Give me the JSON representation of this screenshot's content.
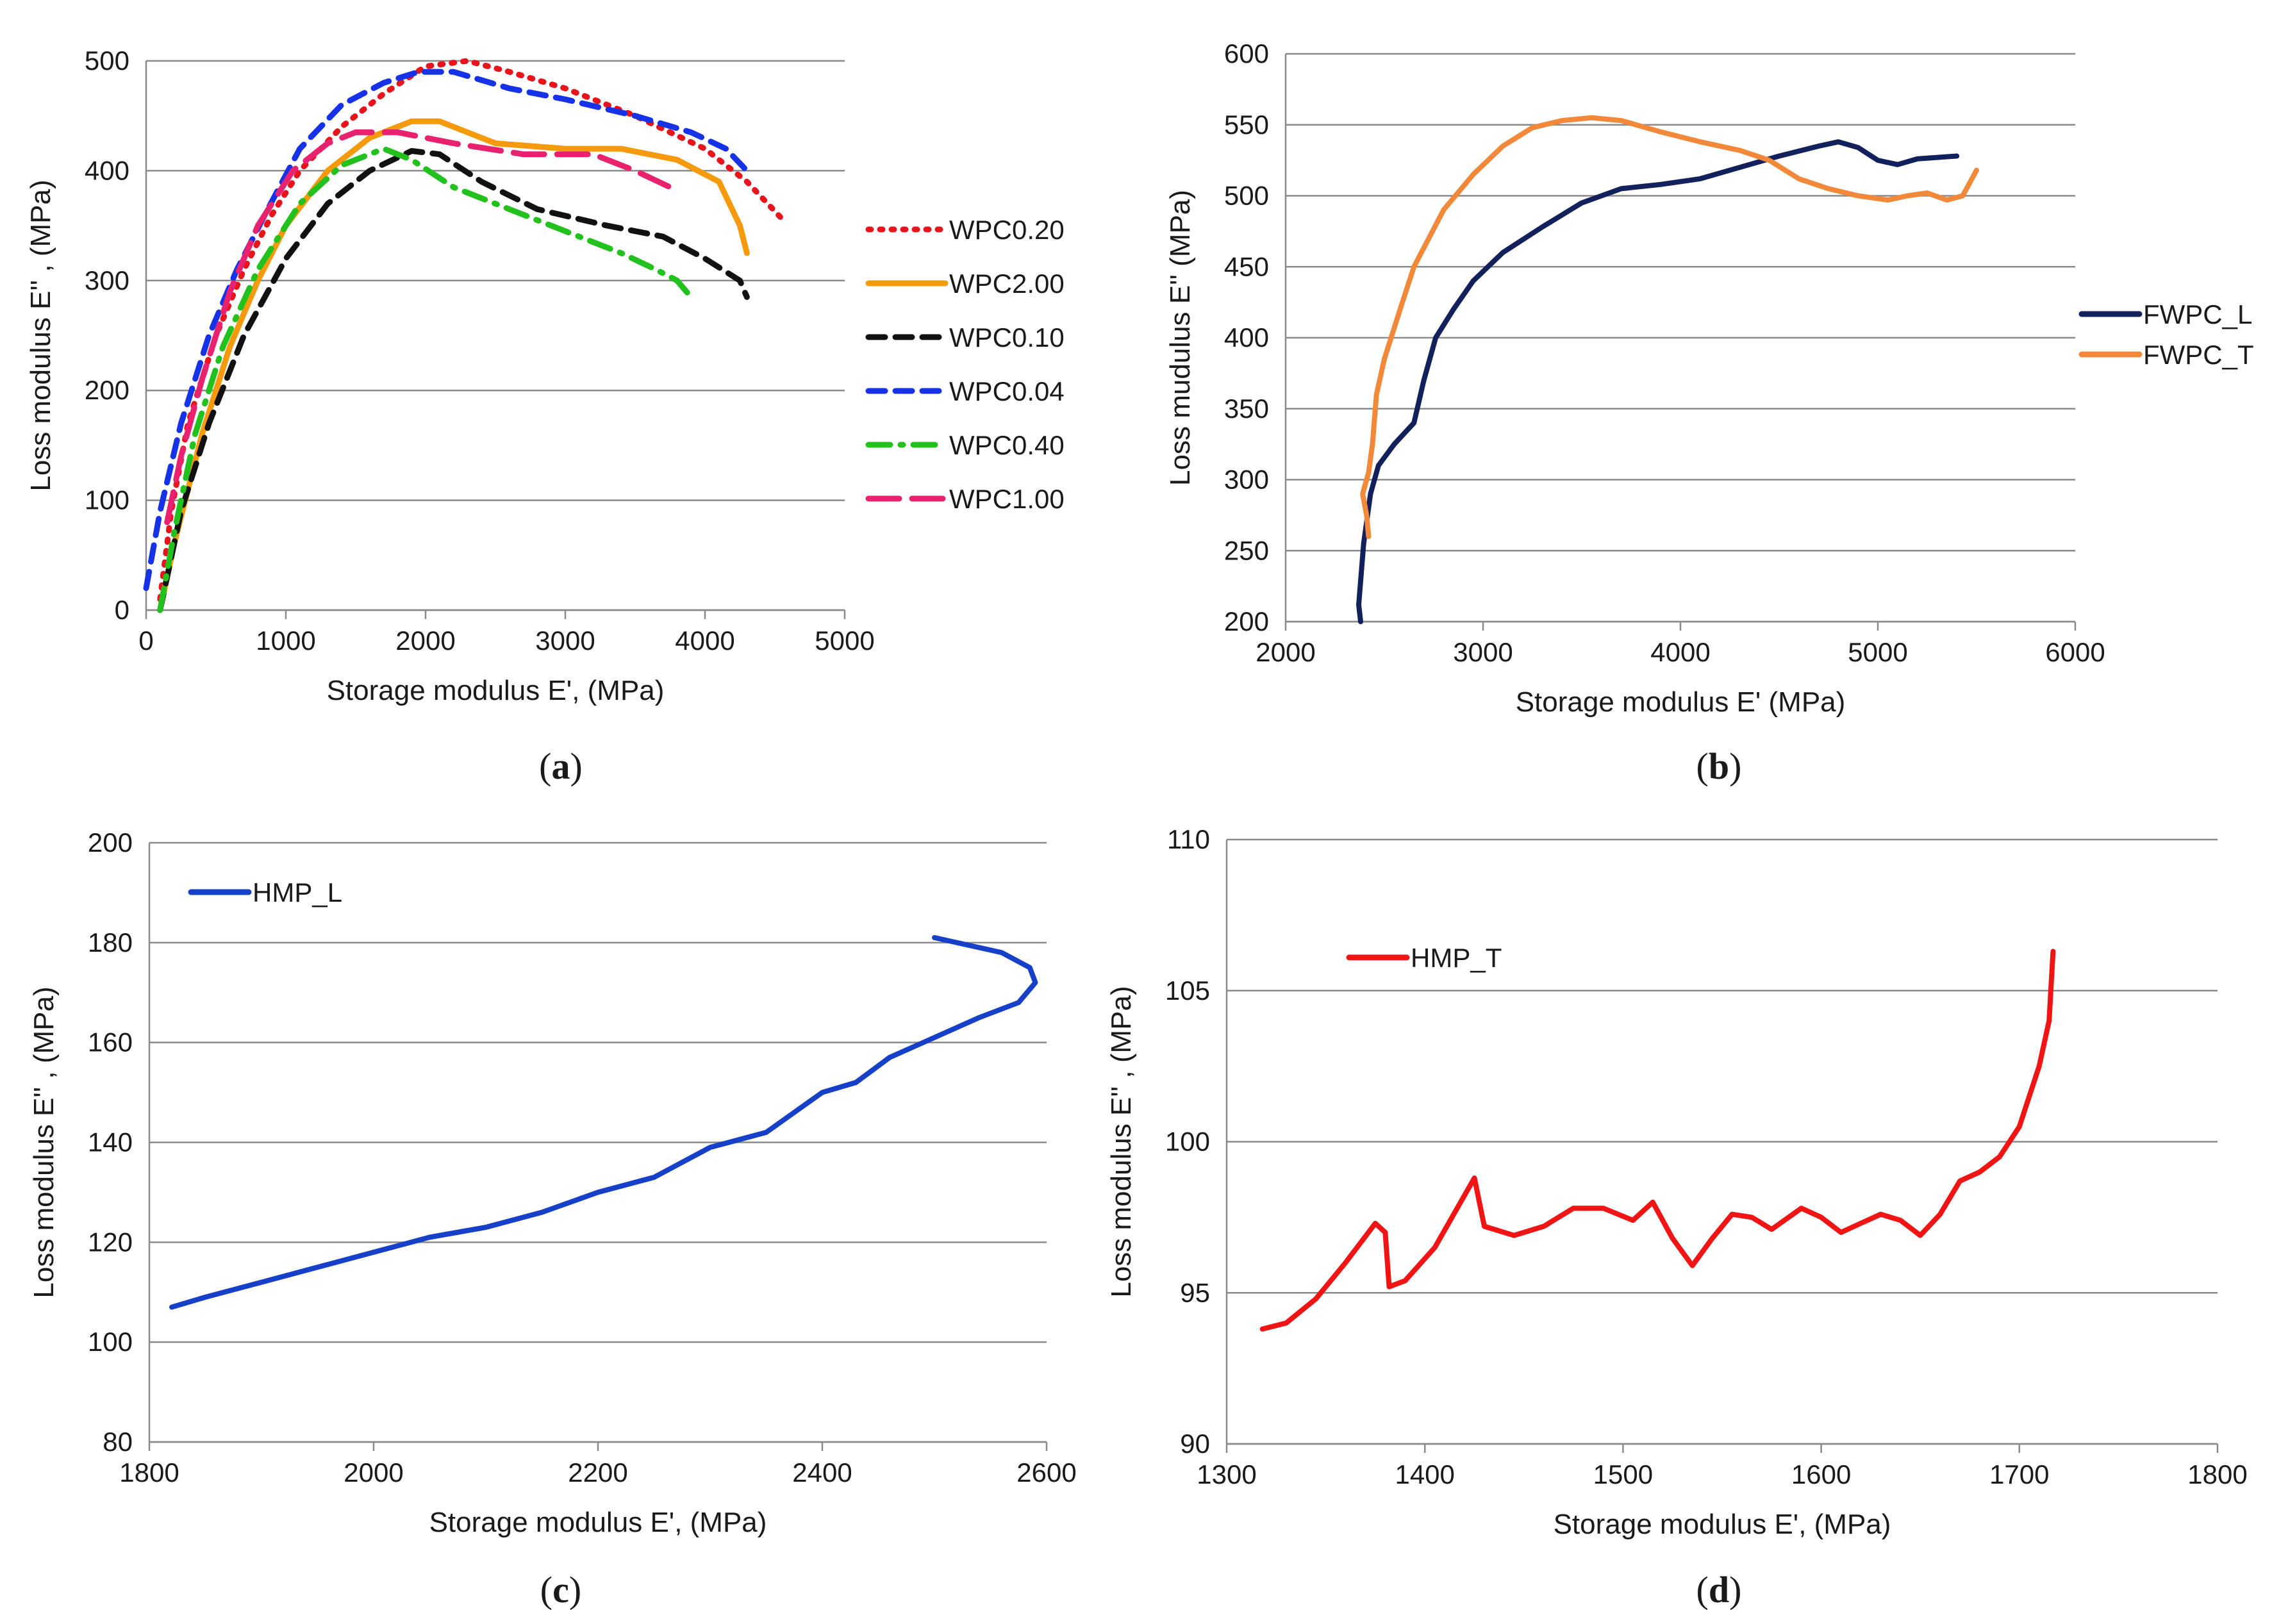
{
  "chart_data": [
    {
      "id": "a",
      "type": "line",
      "panel_label": "a",
      "title": "",
      "xlabel": "Storage modulus  E', (MPa)",
      "ylabel": "Loss modulus  E'' , (MPa)",
      "xlim": [
        0,
        5000
      ],
      "ylim": [
        0,
        500
      ],
      "xticks": [
        "0",
        "1000",
        "2000",
        "3000",
        "4000",
        "5000"
      ],
      "yticks": [
        "0",
        "100",
        "200",
        "300",
        "400",
        "500"
      ],
      "grid": true,
      "legend_position": "right",
      "series": [
        {
          "name": "WPC0.20",
          "color": "#e8141c",
          "dash": "dotted",
          "points": [
            [
              100,
              10
            ],
            [
              180,
              90
            ],
            [
              300,
              170
            ],
            [
              500,
              250
            ],
            [
              700,
              310
            ],
            [
              900,
              360
            ],
            [
              1100,
              400
            ],
            [
              1400,
              440
            ],
            [
              1700,
              470
            ],
            [
              2000,
              495
            ],
            [
              2300,
              500
            ],
            [
              2600,
              490
            ],
            [
              3000,
              475
            ],
            [
              3500,
              450
            ],
            [
              4000,
              420
            ],
            [
              4300,
              390
            ],
            [
              4560,
              355
            ]
          ]
        },
        {
          "name": "WPC2.00",
          "color": "#f59a0c",
          "dash": "solid",
          "points": [
            [
              100,
              0
            ],
            [
              200,
              60
            ],
            [
              400,
              160
            ],
            [
              600,
              240
            ],
            [
              800,
              300
            ],
            [
              1000,
              350
            ],
            [
              1300,
              400
            ],
            [
              1600,
              430
            ],
            [
              1900,
              445
            ],
            [
              2100,
              445
            ],
            [
              2500,
              425
            ],
            [
              3000,
              420
            ],
            [
              3400,
              420
            ],
            [
              3800,
              410
            ],
            [
              4100,
              390
            ],
            [
              4250,
              350
            ],
            [
              4300,
              325
            ]
          ]
        },
        {
          "name": "WPC0.10",
          "color": "#111111",
          "dash": "dashed",
          "points": [
            [
              100,
              0
            ],
            [
              250,
              90
            ],
            [
              450,
              170
            ],
            [
              700,
              250
            ],
            [
              1000,
              320
            ],
            [
              1300,
              370
            ],
            [
              1600,
              400
            ],
            [
              1900,
              418
            ],
            [
              2100,
              415
            ],
            [
              2400,
              390
            ],
            [
              2800,
              365
            ],
            [
              3300,
              350
            ],
            [
              3700,
              340
            ],
            [
              4000,
              320
            ],
            [
              4250,
              300
            ],
            [
              4300,
              285
            ]
          ]
        },
        {
          "name": "WPC0.04",
          "color": "#1632e6",
          "dash": "dashed",
          "points": [
            [
              0,
              20
            ],
            [
              100,
              90
            ],
            [
              250,
              170
            ],
            [
              450,
              250
            ],
            [
              650,
              310
            ],
            [
              850,
              360
            ],
            [
              1100,
              420
            ],
            [
              1400,
              460
            ],
            [
              1700,
              480
            ],
            [
              1950,
              490
            ],
            [
              2200,
              490
            ],
            [
              2600,
              475
            ],
            [
              3000,
              465
            ],
            [
              3500,
              450
            ],
            [
              3900,
              435
            ],
            [
              4150,
              420
            ],
            [
              4300,
              400
            ]
          ]
        },
        {
          "name": "WPC0.40",
          "color": "#22c11e",
          "dash": "dashdot",
          "points": [
            [
              100,
              0
            ],
            [
              200,
              70
            ],
            [
              350,
              160
            ],
            [
              550,
              240
            ],
            [
              800,
              310
            ],
            [
              1100,
              370
            ],
            [
              1400,
              405
            ],
            [
              1700,
              420
            ],
            [
              1900,
              410
            ],
            [
              2200,
              385
            ],
            [
              2600,
              365
            ],
            [
              3000,
              345
            ],
            [
              3400,
              325
            ],
            [
              3650,
              310
            ],
            [
              3800,
              300
            ],
            [
              3900,
              285
            ]
          ]
        },
        {
          "name": "WPC1.00",
          "color": "#e8226e",
          "dash": "longdash",
          "points": [
            [
              150,
              80
            ],
            [
              250,
              140
            ],
            [
              400,
              210
            ],
            [
              600,
              290
            ],
            [
              800,
              350
            ],
            [
              1050,
              400
            ],
            [
              1300,
              425
            ],
            [
              1500,
              435
            ],
            [
              1800,
              435
            ],
            [
              2200,
              425
            ],
            [
              2700,
              415
            ],
            [
              3200,
              415
            ],
            [
              3500,
              400
            ],
            [
              3750,
              385
            ]
          ]
        }
      ]
    },
    {
      "id": "b",
      "type": "line",
      "panel_label": "b",
      "title": "",
      "xlabel": "Storage modulus  E'  (MPa)",
      "ylabel": "Loss mudulus  E'' (MPa)",
      "xlim": [
        2000,
        6000
      ],
      "ylim": [
        200,
        600
      ],
      "xticks": [
        "2000",
        "3000",
        "4000",
        "5000",
        "6000"
      ],
      "yticks": [
        "200",
        "250",
        "300",
        "350",
        "400",
        "450",
        "500",
        "550",
        "600"
      ],
      "grid": true,
      "legend_position": "right",
      "series": [
        {
          "name": "FWPC_L",
          "color": "#12215c",
          "dash": "solid",
          "points": [
            [
              2380,
              200
            ],
            [
              2370,
              212
            ],
            [
              2395,
              255
            ],
            [
              2430,
              290
            ],
            [
              2470,
              310
            ],
            [
              2550,
              325
            ],
            [
              2650,
              340
            ],
            [
              2700,
              370
            ],
            [
              2760,
              400
            ],
            [
              2850,
              420
            ],
            [
              2950,
              440
            ],
            [
              3100,
              460
            ],
            [
              3300,
              478
            ],
            [
              3500,
              495
            ],
            [
              3700,
              505
            ],
            [
              3900,
              508
            ],
            [
              4100,
              512
            ],
            [
              4300,
              520
            ],
            [
              4500,
              528
            ],
            [
              4700,
              535
            ],
            [
              4800,
              538
            ],
            [
              4900,
              534
            ],
            [
              5000,
              525
            ],
            [
              5100,
              522
            ],
            [
              5200,
              526
            ],
            [
              5400,
              528
            ]
          ]
        },
        {
          "name": "FWPC_T",
          "color": "#f2893a",
          "dash": "solid",
          "points": [
            [
              2420,
              260
            ],
            [
              2410,
              275
            ],
            [
              2390,
              290
            ],
            [
              2420,
              305
            ],
            [
              2440,
              325
            ],
            [
              2460,
              360
            ],
            [
              2500,
              385
            ],
            [
              2580,
              420
            ],
            [
              2650,
              450
            ],
            [
              2800,
              490
            ],
            [
              2950,
              515
            ],
            [
              3100,
              535
            ],
            [
              3250,
              548
            ],
            [
              3400,
              553
            ],
            [
              3550,
              555
            ],
            [
              3700,
              553
            ],
            [
              3900,
              545
            ],
            [
              4100,
              538
            ],
            [
              4300,
              532
            ],
            [
              4450,
              525
            ],
            [
              4600,
              512
            ],
            [
              4750,
              505
            ],
            [
              4900,
              500
            ],
            [
              5050,
              497
            ],
            [
              5150,
              500
            ],
            [
              5250,
              502
            ],
            [
              5350,
              497
            ],
            [
              5430,
              500
            ],
            [
              5500,
              518
            ]
          ]
        }
      ]
    },
    {
      "id": "c",
      "type": "line",
      "panel_label": "c",
      "title": "",
      "xlabel": "Storage modulus  E', (MPa)",
      "ylabel": "Loss modulus  E'' , (MPa)",
      "xlim": [
        1800,
        2600
      ],
      "ylim": [
        80,
        200
      ],
      "xticks": [
        "1800",
        "2000",
        "2200",
        "2400",
        "2600"
      ],
      "yticks": [
        "80",
        "100",
        "120",
        "140",
        "160",
        "180",
        "200"
      ],
      "grid": true,
      "legend_position": "top-left",
      "series": [
        {
          "name": "HMP_L",
          "color": "#1640c8",
          "dash": "solid",
          "points": [
            [
              1820,
              107
            ],
            [
              1850,
              109
            ],
            [
              1900,
              112
            ],
            [
              1950,
              115
            ],
            [
              2000,
              118
            ],
            [
              2050,
              121
            ],
            [
              2100,
              123
            ],
            [
              2150,
              126
            ],
            [
              2200,
              130
            ],
            [
              2250,
              133
            ],
            [
              2300,
              139
            ],
            [
              2350,
              142
            ],
            [
              2400,
              150
            ],
            [
              2430,
              152
            ],
            [
              2460,
              157
            ],
            [
              2500,
              161
            ],
            [
              2540,
              165
            ],
            [
              2575,
              168
            ],
            [
              2590,
              172
            ],
            [
              2585,
              175
            ],
            [
              2560,
              178
            ],
            [
              2500,
              181
            ]
          ]
        }
      ]
    },
    {
      "id": "d",
      "type": "line",
      "panel_label": "d",
      "title": "",
      "xlabel": "Storage modulus  E', (MPa)",
      "ylabel": "Loss modulus  E'' , (MPa)",
      "xlim": [
        1300,
        1800
      ],
      "ylim": [
        90,
        110
      ],
      "xticks": [
        "1300",
        "1400",
        "1500",
        "1600",
        "1700",
        "1800"
      ],
      "yticks": [
        "90",
        "95",
        "100",
        "105",
        "110"
      ],
      "grid": true,
      "legend_position": "top-left",
      "series": [
        {
          "name": "HMP_T",
          "color": "#f01414",
          "dash": "solid",
          "points": [
            [
              1318,
              93.8
            ],
            [
              1330,
              94.0
            ],
            [
              1345,
              94.8
            ],
            [
              1360,
              96.0
            ],
            [
              1375,
              97.3
            ],
            [
              1380,
              97.0
            ],
            [
              1382,
              95.2
            ],
            [
              1390,
              95.4
            ],
            [
              1405,
              96.5
            ],
            [
              1425,
              98.8
            ],
            [
              1430,
              97.2
            ],
            [
              1445,
              96.9
            ],
            [
              1460,
              97.2
            ],
            [
              1475,
              97.8
            ],
            [
              1490,
              97.8
            ],
            [
              1505,
              97.4
            ],
            [
              1515,
              98.0
            ],
            [
              1525,
              96.8
            ],
            [
              1535,
              95.9
            ],
            [
              1545,
              96.8
            ],
            [
              1555,
              97.6
            ],
            [
              1565,
              97.5
            ],
            [
              1575,
              97.1
            ],
            [
              1590,
              97.8
            ],
            [
              1600,
              97.5
            ],
            [
              1610,
              97.0
            ],
            [
              1620,
              97.3
            ],
            [
              1630,
              97.6
            ],
            [
              1640,
              97.4
            ],
            [
              1650,
              96.9
            ],
            [
              1660,
              97.6
            ],
            [
              1670,
              98.7
            ],
            [
              1680,
              99.0
            ],
            [
              1690,
              99.5
            ],
            [
              1700,
              100.5
            ],
            [
              1710,
              102.5
            ],
            [
              1715,
              104.0
            ],
            [
              1717,
              106.3
            ]
          ]
        }
      ]
    }
  ]
}
